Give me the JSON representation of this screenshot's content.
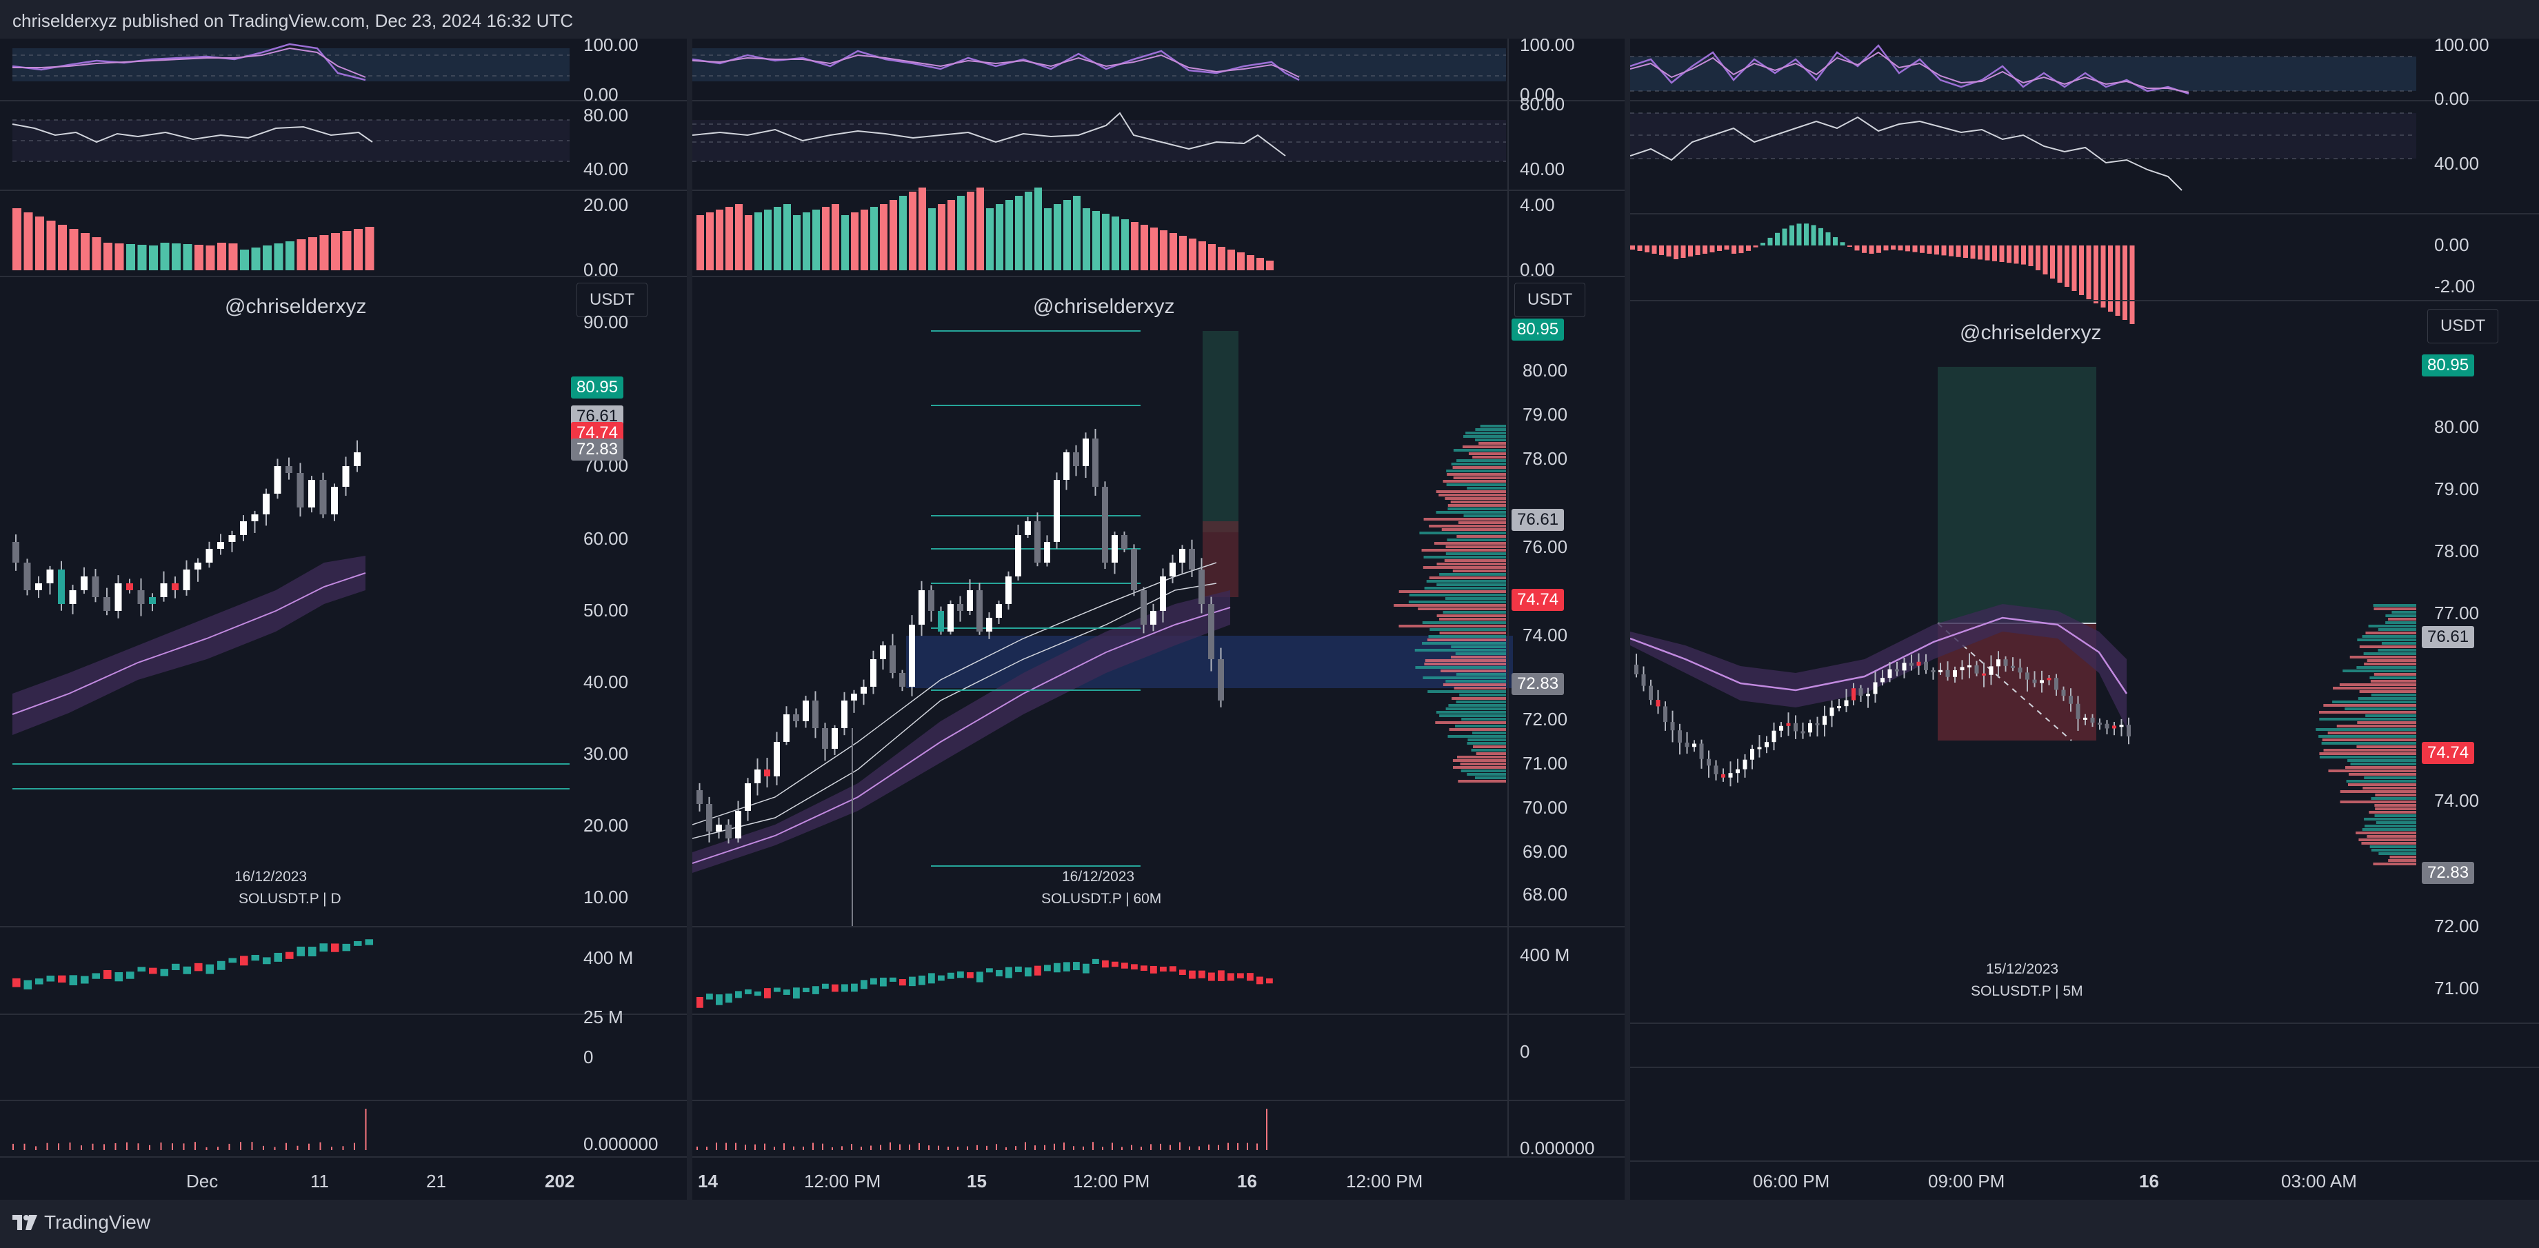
{
  "header": {
    "publish_text": "chriselderxyz published on TradingView.com, Dec 23, 2024 16:32 UTC"
  },
  "footer": {
    "brand": "TradingView"
  },
  "colors": {
    "bg": "#131722",
    "up": "#26a69a",
    "down": "#f23645",
    "purple": "#9c27b0",
    "grid": "#2a2e39",
    "green_tag": "#089981",
    "red_tag": "#f23645",
    "gray_tag": "#b2b5be"
  },
  "panels": [
    {
      "watermark": "@chriselderxyz",
      "currency": "USDT",
      "date_label": "16/12/2023",
      "symbol_label": "SOLUSDT.P | D",
      "osc1_scale": [
        "100.00",
        "0.00"
      ],
      "osc2_scale": [
        "80.00",
        "40.00"
      ],
      "osc3_scale": [
        "20.00",
        "0.00"
      ],
      "price_scale": [
        "90.00",
        "80.00",
        "70.00",
        "60.00",
        "50.00",
        "40.00",
        "30.00",
        "20.00",
        "10.00"
      ],
      "price_tags": [
        "80.95",
        "76.61",
        "74.74",
        "72.83"
      ],
      "vol_scale": [
        "400 M",
        "25 M",
        "0"
      ],
      "last_scale": [
        "0.000000"
      ],
      "time_axis": [
        "Dec",
        "11",
        "21",
        "202"
      ]
    },
    {
      "watermark": "@chriselderxyz",
      "currency": "USDT",
      "date_label": "16/12/2023",
      "symbol_label": "SOLUSDT.P | 60M",
      "osc1_scale": [
        "100.00",
        "0.00"
      ],
      "osc2_scale": [
        "80.00",
        "40.00"
      ],
      "osc3_scale": [
        "4.00",
        "0.00"
      ],
      "price_scale": [
        "80.00",
        "79.00",
        "78.00",
        "77.00",
        "76.00",
        "75.00",
        "74.00",
        "73.00",
        "72.00",
        "71.00",
        "70.00",
        "69.00",
        "68.00"
      ],
      "price_tags": [
        "80.95",
        "76.61",
        "74.74",
        "72.83"
      ],
      "vol_scale": [
        "400 M",
        "0"
      ],
      "last_scale": [
        "0.000000"
      ],
      "time_axis": [
        "14",
        "12:00 PM",
        "15",
        "12:00 PM",
        "16",
        "12:00 PM"
      ]
    },
    {
      "watermark": "@chriselderxyz",
      "currency": "USDT",
      "date_label": "15/12/2023",
      "symbol_label": "SOLUSDT.P | 5M",
      "osc1_scale": [
        "100.00",
        "0.00"
      ],
      "osc2_scale": [
        "40.00"
      ],
      "osc3_scale": [
        "0.00",
        "-2.00"
      ],
      "price_scale": [
        "80.00",
        "79.00",
        "78.00",
        "77.00",
        "76.00",
        "75.00",
        "74.00",
        "73.00",
        "72.00",
        "71.00"
      ],
      "price_tags": [
        "80.95",
        "76.61",
        "74.74",
        "72.83"
      ],
      "time_axis": [
        "06:00 PM",
        "09:00 PM",
        "16",
        "03:00 AM"
      ]
    }
  ]
}
